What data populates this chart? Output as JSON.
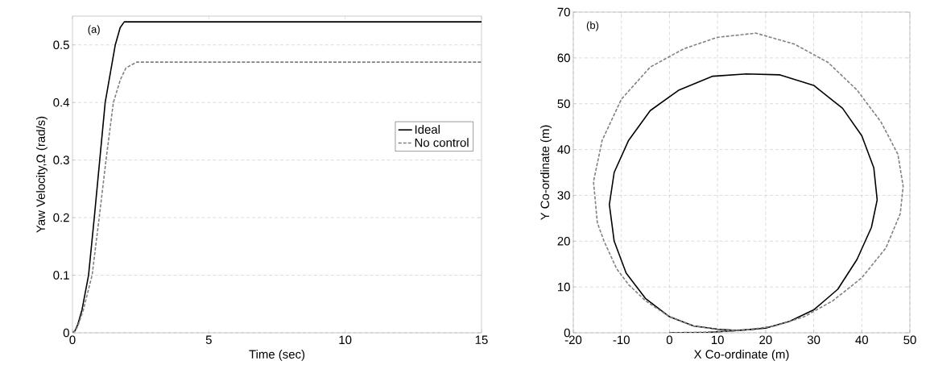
{
  "chart_data": [
    {
      "type": "line",
      "xlabel": "Time (sec)",
      "ylabel": "Yaw Velocity,Ω (rad/s)",
      "annotations": [
        "(a)"
      ],
      "xlim": [
        0,
        15
      ],
      "ylim": [
        0,
        0.55
      ],
      "xticks": [
        0,
        5,
        10,
        15
      ],
      "yticks": [
        0,
        0.1,
        0.2,
        0.3,
        0.4,
        0.5
      ],
      "grid": "y",
      "legend": "right",
      "marker": "none",
      "series": [
        {
          "name": "Ideal",
          "color": "#000000",
          "line_style": "solid",
          "x": [
            0,
            0.1,
            0.2,
            0.35,
            0.59,
            0.8,
            1.0,
            1.2,
            1.57,
            1.75,
            1.9,
            15
          ],
          "values": [
            0,
            0.004,
            0.015,
            0.04,
            0.1,
            0.2,
            0.3,
            0.4,
            0.5,
            0.53,
            0.54,
            0.54
          ]
        },
        {
          "name": "No control",
          "color": "#808080",
          "line_style": "dashed",
          "x": [
            0,
            0.1,
            0.2,
            0.4,
            0.72,
            0.98,
            1.23,
            1.5,
            1.76,
            1.96,
            2.35,
            15
          ],
          "values": [
            0,
            0.003,
            0.012,
            0.04,
            0.1,
            0.2,
            0.3,
            0.4,
            0.44,
            0.46,
            0.47,
            0.47
          ]
        }
      ]
    },
    {
      "type": "line",
      "xlabel": "X Co-ordinate (m)",
      "ylabel": "Y Co-ordinate (m)",
      "annotations": [
        "(b)"
      ],
      "xlim": [
        -20,
        50
      ],
      "ylim": [
        0,
        70
      ],
      "xticks": [
        -20,
        -10,
        0,
        10,
        20,
        30,
        40,
        50
      ],
      "yticks": [
        0,
        10,
        20,
        30,
        40,
        50,
        60,
        70
      ],
      "grid": true,
      "marker": "none",
      "series": [
        {
          "color": "#000000",
          "line_style": "solid",
          "x": [
            0,
            8,
            14,
            20,
            25,
            30,
            35,
            39,
            42,
            43.2,
            42.5,
            40,
            36,
            30,
            23,
            16,
            9,
            2,
            -4,
            -8.5,
            -11.5,
            -12.5,
            -11.5,
            -9,
            -5,
            0,
            5,
            10,
            14,
            18
          ],
          "values": [
            0,
            0.1,
            0.5,
            1,
            2.5,
            5,
            9.5,
            16,
            23,
            29,
            36,
            43,
            49,
            54,
            56.3,
            56.5,
            56,
            53,
            48.5,
            42,
            35,
            28,
            20,
            13,
            7.5,
            3.5,
            1.5,
            0.8,
            0.5,
            0.8
          ]
        },
        {
          "color": "#808080",
          "line_style": "dashed",
          "x": [
            0,
            10,
            15,
            22,
            28,
            34,
            40,
            45,
            48,
            48.6,
            47.5,
            44,
            39,
            33,
            26,
            18,
            10,
            3,
            -4,
            -10,
            -14,
            -15.8,
            -15,
            -13.6,
            -11,
            -8.5,
            -5,
            0,
            5,
            10,
            14
          ],
          "values": [
            0,
            0.2,
            0.5,
            1.5,
            3.5,
            7,
            12,
            18.5,
            26,
            32,
            39,
            46,
            53,
            59,
            63,
            65.4,
            64.5,
            62,
            58,
            51,
            42,
            33,
            24,
            20,
            14,
            10.5,
            7,
            3.5,
            1.5,
            0.7,
            0.5
          ]
        }
      ]
    }
  ]
}
